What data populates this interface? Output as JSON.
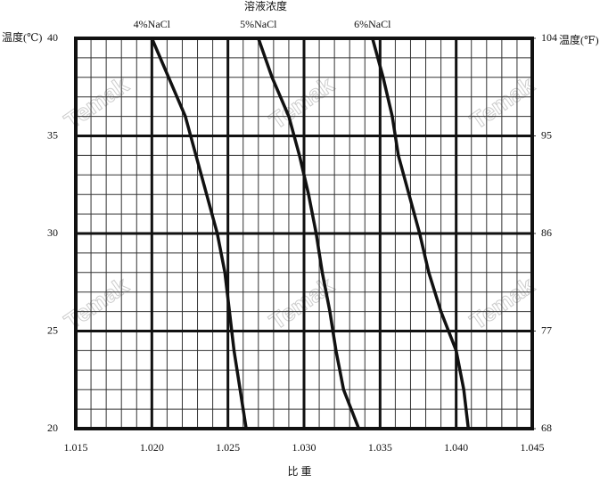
{
  "chart_data": {
    "type": "line",
    "title": "溶液浓度",
    "x_label": "比 重",
    "y_label": "温度(℃)",
    "y2_label": "温度(℉)",
    "watermark": "Temak",
    "xlim": [
      1.015,
      1.045
    ],
    "xticks": [
      1.015,
      {
        "value": 1.02,
        "label": "1.020"
      },
      1.025,
      {
        "value": 1.03,
        "label": "1.030"
      },
      1.035,
      {
        "value": 1.04,
        "label": "1.040"
      },
      1.045
    ],
    "ylim": [
      20,
      40
    ],
    "yticks": [
      20,
      25,
      30,
      35,
      40
    ],
    "y2lim": [
      68,
      104
    ],
    "y2ticks": [
      68,
      77,
      86,
      95,
      104
    ],
    "grid": true,
    "series": [
      {
        "name": "4%NaCl",
        "color": "#111111",
        "x": [
          1.02,
          1.0211,
          1.0222,
          1.0229,
          1.0236,
          1.0243,
          1.0248,
          1.0251,
          1.0254,
          1.0258,
          1.0262
        ],
        "values": [
          40,
          38,
          36,
          34,
          32,
          30,
          28,
          26,
          24,
          22,
          20
        ]
      },
      {
        "name": "5%NaCl",
        "color": "#111111",
        "x": [
          1.027,
          1.0279,
          1.029,
          1.0297,
          1.0303,
          1.0308,
          1.0312,
          1.0317,
          1.0321,
          1.0326,
          1.0336
        ],
        "values": [
          40,
          38,
          36,
          34,
          32,
          30,
          28,
          26,
          24,
          22,
          20
        ]
      },
      {
        "name": "6%NaCl",
        "color": "#111111",
        "x": [
          1.0345,
          1.0352,
          1.0358,
          1.0362,
          1.0369,
          1.0376,
          1.0382,
          1.039,
          1.04,
          1.0405,
          1.0408
        ],
        "values": [
          40,
          38,
          36,
          34,
          32,
          30,
          28,
          26,
          24,
          22,
          20
        ]
      }
    ]
  }
}
